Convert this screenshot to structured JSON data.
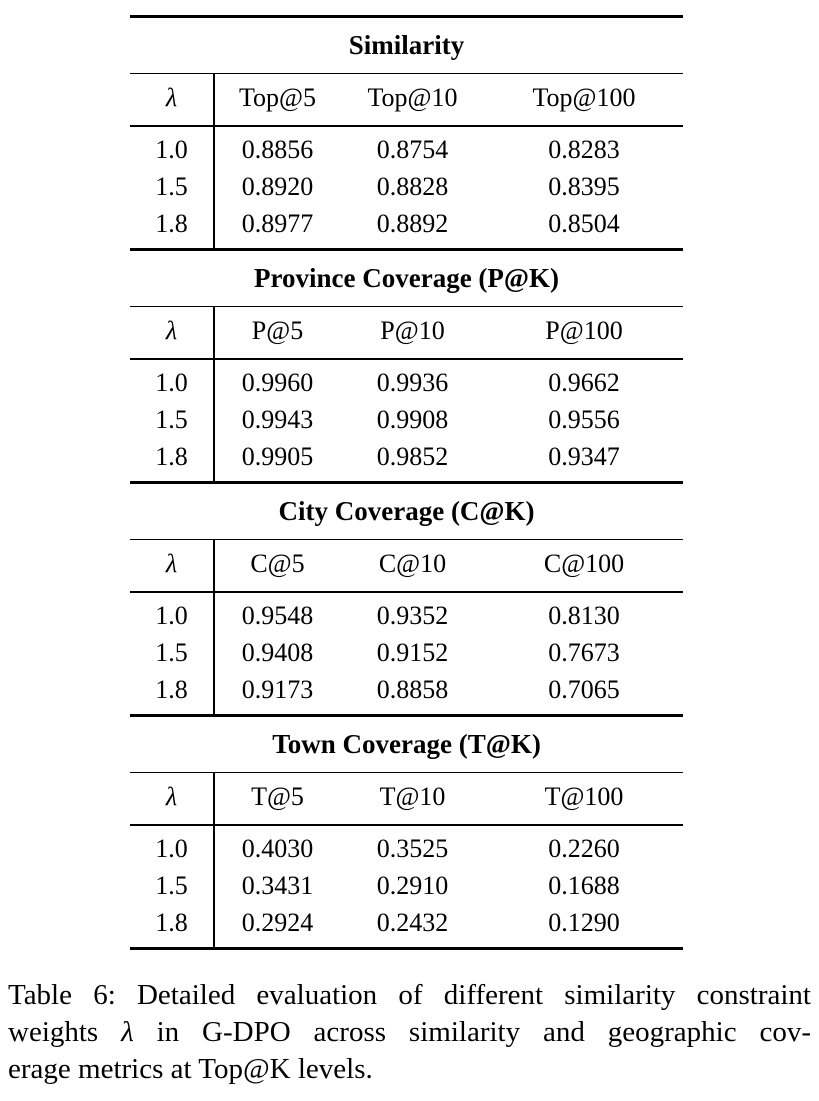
{
  "page": {
    "background": "#ffffff",
    "text_color": "#000000"
  },
  "table": {
    "sections": [
      {
        "title": "Similarity",
        "headers": [
          "λ",
          "Top@5",
          "Top@10",
          "Top@100"
        ],
        "rows": [
          [
            "1.0",
            "0.8856",
            "0.8754",
            "0.8283"
          ],
          [
            "1.5",
            "0.8920",
            "0.8828",
            "0.8395"
          ],
          [
            "1.8",
            "0.8977",
            "0.8892",
            "0.8504"
          ]
        ]
      },
      {
        "title": "Province Coverage (P@K)",
        "headers": [
          "λ",
          "P@5",
          "P@10",
          "P@100"
        ],
        "rows": [
          [
            "1.0",
            "0.9960",
            "0.9936",
            "0.9662"
          ],
          [
            "1.5",
            "0.9943",
            "0.9908",
            "0.9556"
          ],
          [
            "1.8",
            "0.9905",
            "0.9852",
            "0.9347"
          ]
        ]
      },
      {
        "title": "City Coverage (C@K)",
        "headers": [
          "λ",
          "C@5",
          "C@10",
          "C@100"
        ],
        "rows": [
          [
            "1.0",
            "0.9548",
            "0.9352",
            "0.8130"
          ],
          [
            "1.5",
            "0.9408",
            "0.9152",
            "0.7673"
          ],
          [
            "1.8",
            "0.9173",
            "0.8858",
            "0.7065"
          ]
        ]
      },
      {
        "title": "Town Coverage (T@K)",
        "headers": [
          "λ",
          "T@5",
          "T@10",
          "T@100"
        ],
        "rows": [
          [
            "1.0",
            "0.4030",
            "0.3525",
            "0.2260"
          ],
          [
            "1.5",
            "0.3431",
            "0.2910",
            "0.1688"
          ],
          [
            "1.8",
            "0.2924",
            "0.2432",
            "0.1290"
          ]
        ]
      }
    ]
  },
  "caption": {
    "line1": "Table 6: Detailed evaluation of different similarity constraint",
    "line2_prefix": "weights",
    "line2_lambda": "λ",
    "line2_suffix": "in G-DPO across similarity and geographic cov-",
    "line3": "erage metrics at Top@K levels."
  }
}
